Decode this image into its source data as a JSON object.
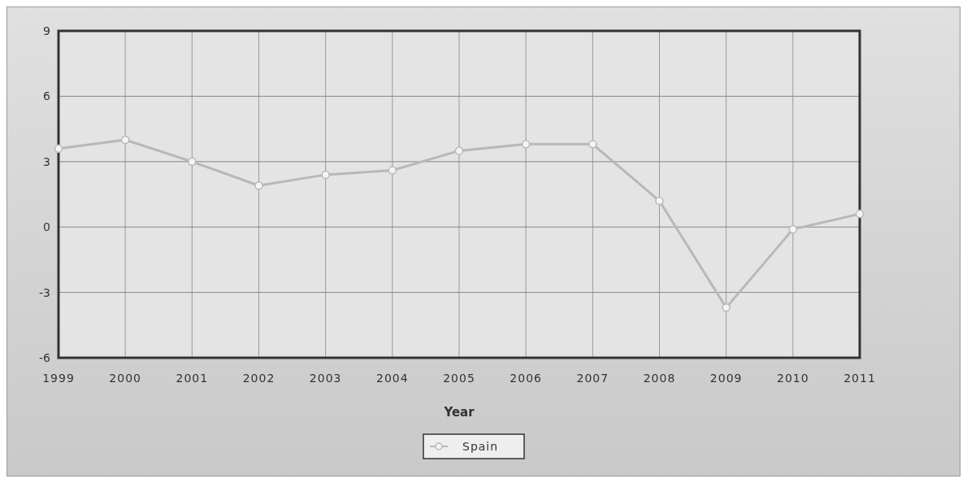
{
  "chart_data": {
    "type": "line",
    "xlabel": "Year",
    "x": [
      1999,
      2000,
      2001,
      2002,
      2003,
      2004,
      2005,
      2006,
      2007,
      2008,
      2009,
      2010,
      2011
    ],
    "series": [
      {
        "name": "Spain",
        "color": "#b8b8b8",
        "values": [
          3.6,
          4.0,
          3.0,
          1.9,
          2.4,
          2.6,
          3.5,
          3.8,
          3.8,
          1.2,
          -3.7,
          -0.1,
          0.6
        ]
      }
    ],
    "xlim": [
      1999,
      2011
    ],
    "xticks": [
      1999,
      2000,
      2001,
      2002,
      2003,
      2004,
      2005,
      2006,
      2007,
      2008,
      2009,
      2010,
      2011
    ],
    "ylim": [
      -6,
      9
    ],
    "yticks": [
      -6,
      -3,
      0,
      3,
      6,
      9
    ],
    "grid": true,
    "legend": "bottom",
    "marker": "circle",
    "line_style": "solid"
  }
}
